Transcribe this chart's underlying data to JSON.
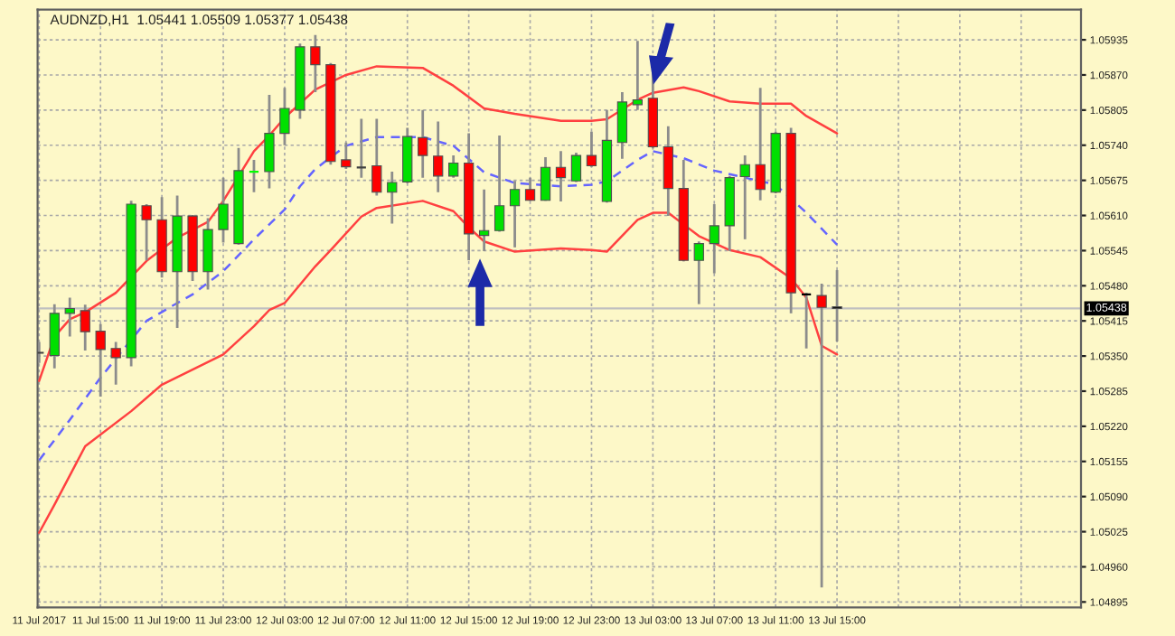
{
  "chart_data": {
    "type": "candlestick",
    "title": "AUDNZD,H1  1.05441 1.05509 1.05377 1.05438",
    "x": [
      "2017-07-11T11:00",
      "2017-07-11T12:00",
      "2017-07-11T13:00",
      "2017-07-11T14:00",
      "2017-07-11T15:00",
      "2017-07-11T16:00",
      "2017-07-11T17:00",
      "2017-07-11T18:00",
      "2017-07-11T19:00",
      "2017-07-11T20:00",
      "2017-07-11T21:00",
      "2017-07-11T22:00",
      "2017-07-11T23:00",
      "2017-07-12T00:00",
      "2017-07-12T01:00",
      "2017-07-12T02:00",
      "2017-07-12T03:00",
      "2017-07-12T04:00",
      "2017-07-12T05:00",
      "2017-07-12T06:00",
      "2017-07-12T07:00",
      "2017-07-12T08:00",
      "2017-07-12T09:00",
      "2017-07-12T10:00",
      "2017-07-12T11:00",
      "2017-07-12T12:00",
      "2017-07-12T13:00",
      "2017-07-12T14:00",
      "2017-07-12T15:00",
      "2017-07-12T16:00",
      "2017-07-12T17:00",
      "2017-07-12T18:00",
      "2017-07-12T19:00",
      "2017-07-12T20:00",
      "2017-07-12T21:00",
      "2017-07-12T22:00",
      "2017-07-12T23:00",
      "2017-07-13T00:00",
      "2017-07-13T01:00",
      "2017-07-13T02:00",
      "2017-07-13T03:00",
      "2017-07-13T04:00",
      "2017-07-13T05:00",
      "2017-07-13T06:00",
      "2017-07-13T07:00",
      "2017-07-13T08:00",
      "2017-07-13T09:00",
      "2017-07-13T10:00",
      "2017-07-13T11:00",
      "2017-07-13T12:00",
      "2017-07-13T13:00",
      "2017-07-13T14:00",
      "2017-07-13T15:00"
    ],
    "ohlc": [
      [
        1.05356,
        1.05376,
        1.05337,
        1.05356
      ],
      [
        1.05351,
        1.05446,
        1.05327,
        1.05429
      ],
      [
        1.05429,
        1.05458,
        1.05386,
        1.05438
      ],
      [
        1.05434,
        1.05445,
        1.0536,
        1.05395
      ],
      [
        1.05396,
        1.05409,
        1.05275,
        1.05362
      ],
      [
        1.05364,
        1.05376,
        1.05297,
        1.05347
      ],
      [
        1.05347,
        1.05637,
        1.05331,
        1.05631
      ],
      [
        1.05628,
        1.05631,
        1.05527,
        1.05602
      ],
      [
        1.05602,
        1.05644,
        1.05495,
        1.05506
      ],
      [
        1.05506,
        1.05647,
        1.05402,
        1.05609
      ],
      [
        1.05609,
        1.05611,
        1.05489,
        1.05506
      ],
      [
        1.05506,
        1.05605,
        1.05473,
        1.05584
      ],
      [
        1.05584,
        1.0568,
        1.0556,
        1.05631
      ],
      [
        1.05558,
        1.05735,
        1.05556,
        1.05693
      ],
      [
        1.05691,
        1.05713,
        1.05653,
        1.05691
      ],
      [
        1.05691,
        1.05833,
        1.0566,
        1.05762
      ],
      [
        1.05762,
        1.05846,
        1.0574,
        1.05808
      ],
      [
        1.05805,
        1.05928,
        1.05789,
        1.05922
      ],
      [
        1.05922,
        1.05944,
        1.05838,
        1.05889
      ],
      [
        1.05889,
        1.05892,
        1.05704,
        1.0571
      ],
      [
        1.05713,
        1.05745,
        1.05696,
        1.057
      ],
      [
        1.05699,
        1.05789,
        1.0568,
        1.05699
      ],
      [
        1.05702,
        1.05789,
        1.05647,
        1.05653
      ],
      [
        1.05653,
        1.05691,
        1.05595,
        1.05671
      ],
      [
        1.05672,
        1.05772,
        1.0567,
        1.05756
      ],
      [
        1.05754,
        1.05805,
        1.0568,
        1.05721
      ],
      [
        1.0572,
        1.05784,
        1.05653,
        1.05683
      ],
      [
        1.05683,
        1.05721,
        1.0568,
        1.05707
      ],
      [
        1.05707,
        1.05762,
        1.05527,
        1.05576
      ],
      [
        1.05573,
        1.05658,
        1.05544,
        1.05582
      ],
      [
        1.05582,
        1.05758,
        1.0558,
        1.05628
      ],
      [
        1.05628,
        1.05674,
        1.05551,
        1.05658
      ],
      [
        1.05658,
        1.0568,
        1.05637,
        1.05638
      ],
      [
        1.05638,
        1.05718,
        1.05637,
        1.05699
      ],
      [
        1.05699,
        1.05729,
        1.05636,
        1.0568
      ],
      [
        1.05674,
        1.05726,
        1.05672,
        1.05721
      ],
      [
        1.05721,
        1.05765,
        1.057,
        1.05702
      ],
      [
        1.05636,
        1.05805,
        1.05634,
        1.05749
      ],
      [
        1.05745,
        1.05838,
        1.05715,
        1.0582
      ],
      [
        1.05815,
        1.05933,
        1.05805,
        1.05824
      ],
      [
        1.05827,
        1.05882,
        1.05734,
        1.05737
      ],
      [
        1.05737,
        1.05775,
        1.05609,
        1.0566
      ],
      [
        1.0566,
        1.05713,
        1.05525,
        1.05527
      ],
      [
        1.05527,
        1.05562,
        1.05446,
        1.05558
      ],
      [
        1.05558,
        1.05631,
        1.05503,
        1.05591
      ],
      [
        1.05591,
        1.05683,
        1.05544,
        1.0568
      ],
      [
        1.05682,
        1.05721,
        1.05566,
        1.05704
      ],
      [
        1.05704,
        1.05846,
        1.05638,
        1.05658
      ],
      [
        1.05653,
        1.05765,
        1.05651,
        1.05762
      ],
      [
        1.05762,
        1.05772,
        1.05429,
        1.05467
      ],
      [
        1.05464,
        1.05467,
        1.05364,
        1.05464
      ],
      [
        1.05462,
        1.05484,
        1.04922,
        1.0544
      ],
      [
        1.05441,
        1.05509,
        1.05377,
        1.05438
      ]
    ],
    "colors": [
      "#404040",
      "#00e000",
      "#00e000",
      "#ff0000",
      "#ff0000",
      "#ff0000",
      "#00e000",
      "#ff0000",
      "#ff0000",
      "#00e000",
      "#ff0000",
      "#00e000",
      "#00e000",
      "#00e000",
      "#00ff00",
      "#00e000",
      "#00e000",
      "#00e000",
      "#ff0000",
      "#ff0000",
      "#ff0000",
      "#404040",
      "#ff0000",
      "#00e000",
      "#00e000",
      "#ff0000",
      "#ff0000",
      "#00e000",
      "#ff0000",
      "#00e000",
      "#00e000",
      "#00e000",
      "#ff0000",
      "#00e000",
      "#ff0000",
      "#00e000",
      "#ff0000",
      "#00e000",
      "#00e000",
      "#00e000",
      "#ff0000",
      "#ff0000",
      "#ff0000",
      "#00e000",
      "#00e000",
      "#00e000",
      "#00e000",
      "#ff0000",
      "#00e000",
      "#ff0000",
      "#000000",
      "#ff0000",
      "#000000"
    ],
    "series": [
      {
        "type": "line",
        "color": "#ff4040",
        "line_style": "solid",
        "x": [
          "2017-07-11T11:00",
          "2017-07-11T12:00",
          "2017-07-11T13:00",
          "2017-07-11T14:00",
          "2017-07-11T16:00",
          "2017-07-11T18:00",
          "2017-07-11T20:00",
          "2017-07-11T22:00",
          "2017-07-11T23:00",
          "2017-07-12T01:00",
          "2017-07-12T02:00",
          "2017-07-12T03:00",
          "2017-07-12T05:00",
          "2017-07-12T07:00",
          "2017-07-12T09:00",
          "2017-07-12T12:00",
          "2017-07-12T14:00",
          "2017-07-12T16:00",
          "2017-07-12T18:00",
          "2017-07-12T21:00",
          "2017-07-12T23:00",
          "2017-07-13T00:00",
          "2017-07-13T02:00",
          "2017-07-13T03:00",
          "2017-07-13T05:00",
          "2017-07-13T06:00",
          "2017-07-13T08:00",
          "2017-07-13T10:00",
          "2017-07-13T12:00",
          "2017-07-13T13:00",
          "2017-07-13T15:00"
        ],
        "values": [
          1.05304,
          1.05386,
          1.05418,
          1.05431,
          1.05467,
          1.05526,
          1.05569,
          1.05598,
          1.05637,
          1.05729,
          1.05758,
          1.05791,
          1.05843,
          1.0587,
          1.05886,
          1.05883,
          1.0585,
          1.05808,
          1.05798,
          1.05785,
          1.05785,
          1.05788,
          1.05824,
          1.05837,
          1.05847,
          1.0584,
          1.05821,
          1.05817,
          1.05817,
          1.05794,
          1.05762
        ]
      },
      {
        "type": "line",
        "color": "#6464ff",
        "line_style": "dashed",
        "x": [
          "2017-07-11T11:00",
          "2017-07-11T13:00",
          "2017-07-11T15:00",
          "2017-07-11T18:00",
          "2017-07-11T20:00",
          "2017-07-11T21:00",
          "2017-07-11T23:00",
          "2017-07-12T01:00",
          "2017-07-12T03:00",
          "2017-07-12T04:00",
          "2017-07-12T05:00",
          "2017-07-12T07:00",
          "2017-07-12T09:00",
          "2017-07-12T12:00",
          "2017-07-12T14:00",
          "2017-07-12T16:00",
          "2017-07-12T18:00",
          "2017-07-12T21:00",
          "2017-07-12T23:00",
          "2017-07-13T00:00",
          "2017-07-13T02:00",
          "2017-07-13T03:00",
          "2017-07-13T05:00",
          "2017-07-13T07:00",
          "2017-07-13T09:00",
          "2017-07-13T11:00",
          "2017-07-13T12:00",
          "2017-07-13T13:00",
          "2017-07-13T15:00"
        ],
        "values": [
          1.05157,
          1.05232,
          1.0531,
          1.05415,
          1.05448,
          1.05464,
          1.05507,
          1.05566,
          1.05621,
          1.05664,
          1.05696,
          1.05739,
          1.05755,
          1.05755,
          1.05739,
          1.0569,
          1.0567,
          1.05664,
          1.05667,
          1.05673,
          1.05713,
          1.05729,
          1.05716,
          1.05693,
          1.0568,
          1.05667,
          null,
          1.05615,
          1.05556
        ]
      },
      {
        "type": "line",
        "color": "#ff4040",
        "line_style": "solid",
        "x": [
          "2017-07-11T11:00",
          "2017-07-11T12:00",
          "2017-07-11T14:00",
          "2017-07-11T17:00",
          "2017-07-11T19:00",
          "2017-07-11T23:00",
          "2017-07-12T01:00",
          "2017-07-12T02:00",
          "2017-07-12T03:00",
          "2017-07-12T05:00",
          "2017-07-12T06:00",
          "2017-07-12T08:00",
          "2017-07-12T09:00",
          "2017-07-12T12:00",
          "2017-07-12T14:00",
          "2017-07-12T15:00",
          "2017-07-12T16:00",
          "2017-07-12T18:00",
          "2017-07-12T21:00",
          "2017-07-12T23:00",
          "2017-07-13T00:00",
          "2017-07-13T02:00",
          "2017-07-13T03:00",
          "2017-07-13T04:00",
          "2017-07-13T06:00",
          "2017-07-13T08:00",
          "2017-07-13T10:00",
          "2017-07-13T12:00",
          "2017-07-13T13:00",
          "2017-07-13T14:00",
          "2017-07-13T15:00"
        ],
        "values": [
          1.05023,
          1.05075,
          1.05183,
          1.05248,
          1.05297,
          1.05353,
          1.05405,
          1.05435,
          1.05448,
          1.05516,
          1.05546,
          1.05608,
          1.05624,
          1.05637,
          1.05618,
          1.05588,
          1.05562,
          1.05543,
          1.05549,
          1.05546,
          1.05543,
          1.05602,
          1.05615,
          1.05615,
          1.05572,
          1.05546,
          1.05533,
          1.05494,
          1.05458,
          1.05369,
          1.05353
        ]
      }
    ],
    "ref_lines": [
      {
        "axis": "y",
        "value": 1.05438,
        "label": "1.05438",
        "color": "#c0c0c0"
      }
    ],
    "xlim": [
      "2017-07-11T10:54",
      "2017-07-14T06:54"
    ],
    "xticks": [
      {
        "value": "2017-07-11T11:00",
        "label": "11 Jul 2017"
      },
      {
        "value": "2017-07-11T15:00",
        "label": "11 Jul 15:00"
      },
      {
        "value": "2017-07-11T19:00",
        "label": "11 Jul 19:00"
      },
      {
        "value": "2017-07-11T23:00",
        "label": "11 Jul 23:00"
      },
      {
        "value": "2017-07-12T03:00",
        "label": "12 Jul 03:00"
      },
      {
        "value": "2017-07-12T07:00",
        "label": "12 Jul 07:00"
      },
      {
        "value": "2017-07-12T11:00",
        "label": "12 Jul 11:00"
      },
      {
        "value": "2017-07-12T15:00",
        "label": "12 Jul 15:00"
      },
      {
        "value": "2017-07-12T19:00",
        "label": "12 Jul 19:00"
      },
      {
        "value": "2017-07-12T23:00",
        "label": "12 Jul 23:00"
      },
      {
        "value": "2017-07-13T03:00",
        "label": "13 Jul 03:00"
      },
      {
        "value": "2017-07-13T07:00",
        "label": "13 Jul 07:00"
      },
      {
        "value": "2017-07-13T11:00",
        "label": "13 Jul 11:00"
      },
      {
        "value": "2017-07-13T15:00",
        "label": "13 Jul 15:00"
      },
      {
        "value": "2017-07-13T19:00",
        "label": null
      },
      {
        "value": "2017-07-13T23:00",
        "label": null
      },
      {
        "value": "2017-07-14T03:00",
        "label": null
      }
    ],
    "ylim": [
      1.04885,
      1.05991
    ],
    "yticks": [
      1.04895,
      {
        "value": 1.0496,
        "label": "1.04960"
      },
      1.05025,
      {
        "value": 1.0509,
        "label": "1.05090"
      },
      1.05155,
      {
        "value": 1.0522,
        "label": "1.05220"
      },
      1.05285,
      {
        "value": 1.0535,
        "label": "1.05350"
      },
      1.05415,
      {
        "value": 1.0548,
        "label": "1.05480"
      },
      1.05545,
      {
        "value": 1.0561,
        "label": "1.05610"
      },
      1.05675,
      {
        "value": 1.0574,
        "label": "1.05740"
      },
      1.05805,
      {
        "value": 1.0587,
        "label": "1.05870"
      },
      1.05935
    ],
    "grid": true
  }
}
